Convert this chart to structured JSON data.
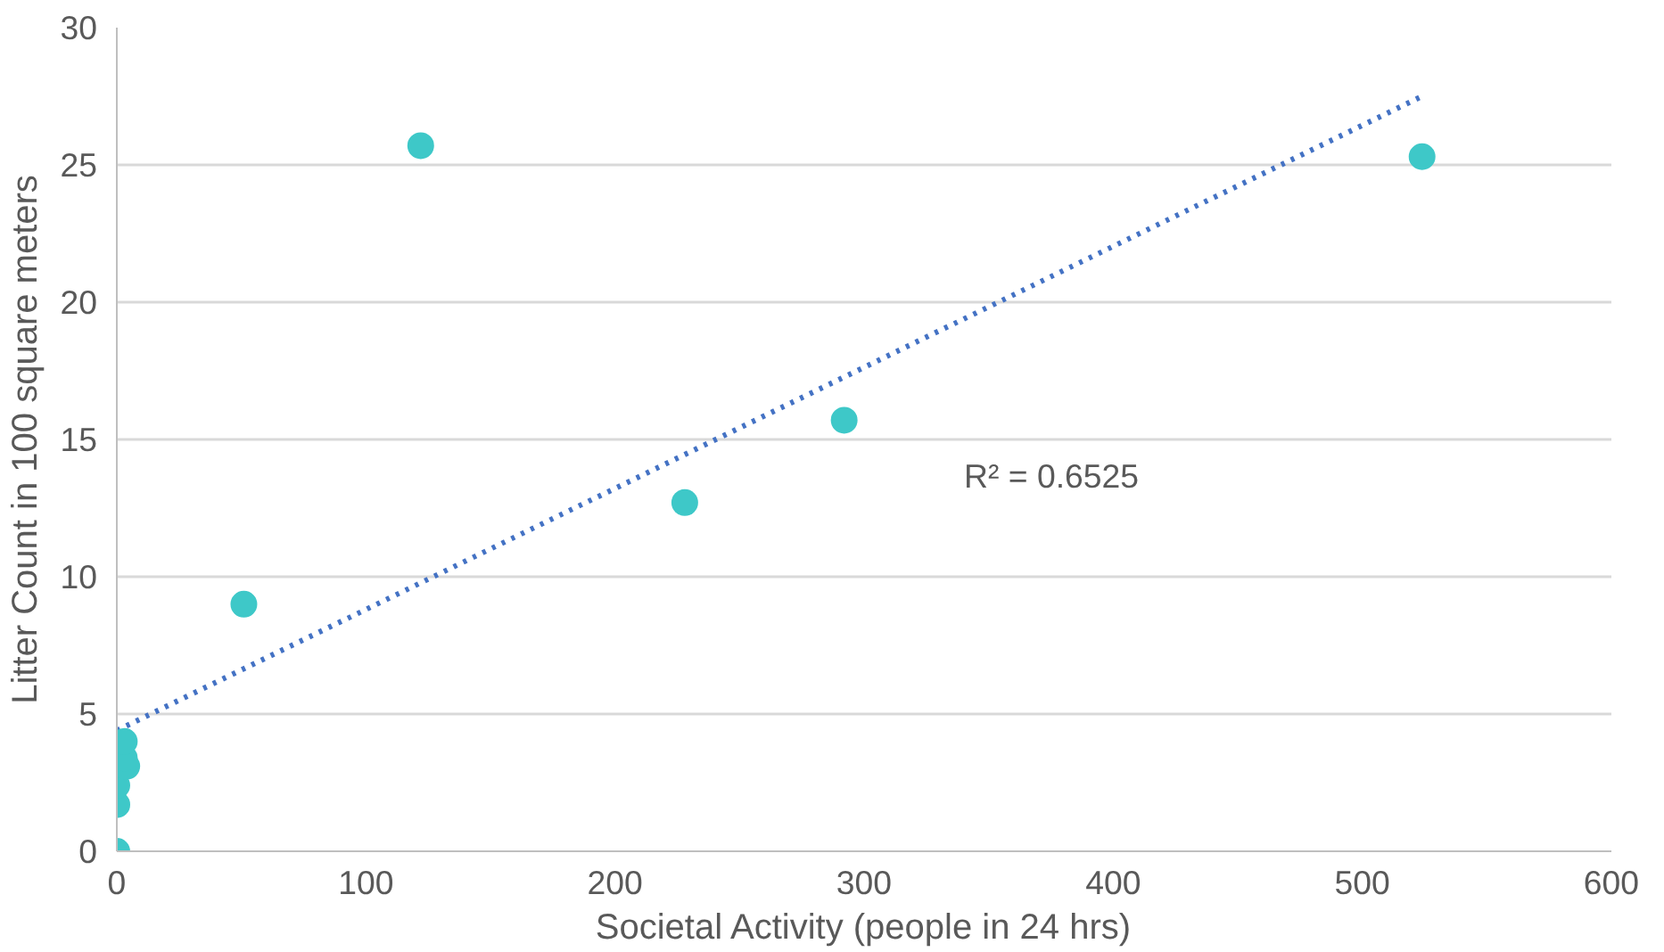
{
  "chart_data": {
    "type": "scatter",
    "xlabel": "Societal Activity (people in 24 hrs)",
    "ylabel": "Litter Count in 100 square meters",
    "xlim": [
      0,
      600
    ],
    "xticks": [
      0,
      100,
      200,
      300,
      400,
      500,
      600
    ],
    "ylim": [
      0,
      30
    ],
    "yticks": [
      0,
      5,
      10,
      15,
      20,
      25,
      30
    ],
    "grid": "y",
    "annotations": [
      "R² = 0.6525"
    ],
    "series": [
      {
        "color": "#3ec8c8",
        "marker": "circle",
        "x": [
          0,
          0,
          0,
          4,
          3,
          3,
          51,
          122,
          228,
          292,
          524
        ],
        "values": [
          0,
          1.7,
          2.4,
          3.1,
          3.4,
          4.0,
          9.0,
          25.7,
          12.7,
          15.7,
          25.3
        ]
      },
      {
        "type": "line",
        "color": "#4472c4",
        "marker": "none",
        "line_style": "dotted",
        "x": [
          0,
          524
        ],
        "values": [
          4.4,
          27.5
        ]
      }
    ]
  }
}
